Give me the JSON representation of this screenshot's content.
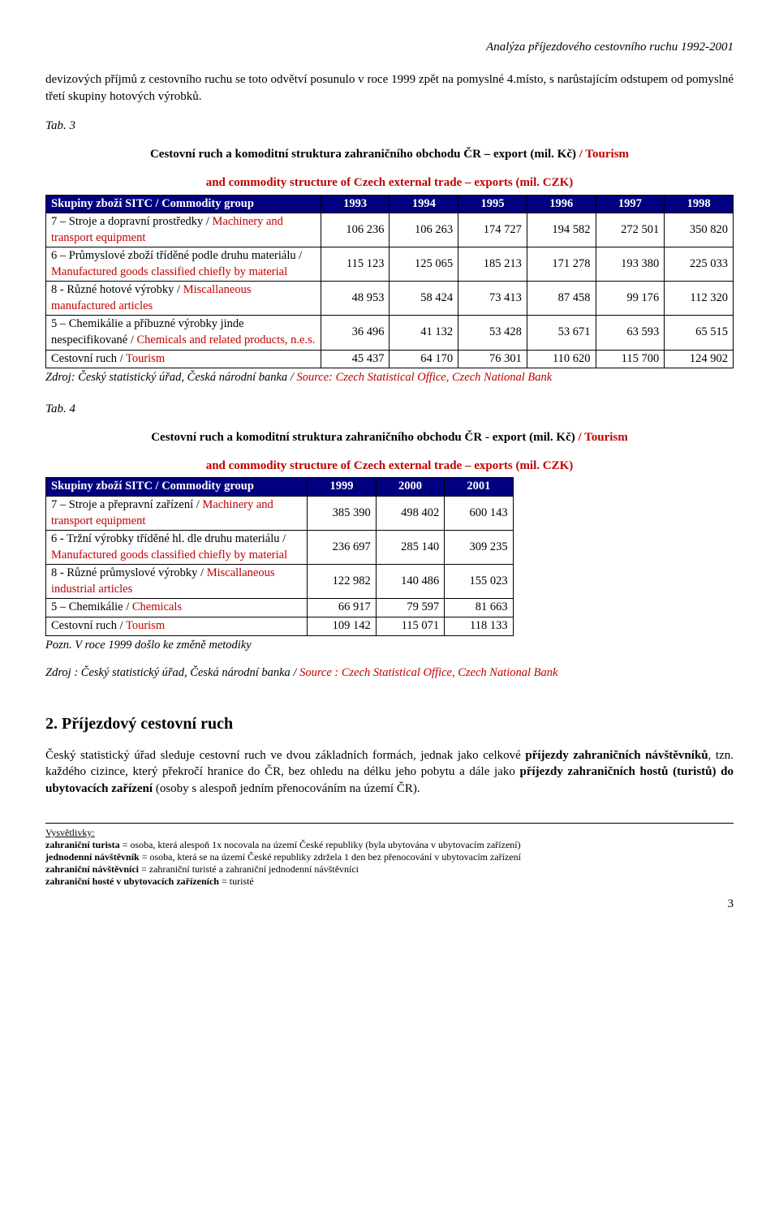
{
  "header": {
    "doc_title": "Analýza příjezdového cestovního ruchu 1992-2001"
  },
  "intro_para": "devizových příjmů z cestovního ruchu se toto odvětví posunulo v roce 1999 zpět na pomyslné 4.místo, s narůstajícím odstupem od pomyslné třetí skupiny hotových výrobků.",
  "tab3": {
    "label": "Tab. 3",
    "title_black": "Cestovní ruch a komoditní struktura zahraničního obchodu ČR – export (mil. Kč)",
    "title_red": " / Tourism",
    "subtitle": "and commodity structure of Czech external trade – exports (mil. CZK)",
    "header_col": "Skupiny zboží SITC / Commodity group",
    "years": [
      "1993",
      "1994",
      "1995",
      "1996",
      "1997",
      "1998"
    ],
    "rows": [
      {
        "label_black": "7 – Stroje a dopravní prostředky /",
        "label_red": " Machinery and transport equipment",
        "values": [
          "106 236",
          "106 263",
          "174 727",
          "194 582",
          "272 501",
          "350 820"
        ]
      },
      {
        "label_black": "6 – Průmyslové zboží tříděné podle druhu materiálu /",
        "label_red": " Manufactured goods classified chiefly by material",
        "values": [
          "115 123",
          "125 065",
          "185 213",
          "171 278",
          "193 380",
          "225 033"
        ]
      },
      {
        "label_black": "8 - Různé hotové výrobky /",
        "label_red": " Miscallaneous manufactured articles",
        "values": [
          "48 953",
          "58 424",
          "73 413",
          "87 458",
          "99 176",
          "112 320"
        ]
      },
      {
        "label_black": "5 – Chemikálie a příbuzné výrobky jinde nespecifikované /",
        "label_red": " Chemicals and related products, n.e.s.",
        "values": [
          "36 496",
          "41 132",
          "53 428",
          "53 671",
          "63 593",
          "65 515"
        ]
      },
      {
        "label_black": "Cestovní ruch /",
        "label_red": " Tourism",
        "values": [
          "45 437",
          "64 170",
          "76 301",
          "110 620",
          "115 700",
          "124 902"
        ]
      }
    ],
    "source_black": "Zdroj: Český statistický úřad, Česká národní banka /",
    "source_red": " Source: Czech Statistical Office, Czech National Bank"
  },
  "tab4": {
    "label": "Tab. 4",
    "title_black": "Cestovní ruch a komoditní struktura zahraničního obchodu ČR - export (mil. Kč)",
    "title_red": " / Tourism",
    "subtitle": "and commodity structure of Czech external trade – exports (mil. CZK)",
    "header_col": "Skupiny zboží SITC / Commodity group",
    "years": [
      "1999",
      "2000",
      "2001"
    ],
    "rows": [
      {
        "label_black": "7 – Stroje a přepravní zařízení /",
        "label_red": " Machinery and transport equipment",
        "values": [
          "385 390",
          "498 402",
          "600 143"
        ]
      },
      {
        "label_black": "6 - Tržní výrobky tříděné hl. dle druhu materiálu /",
        "label_red": " Manufactured goods classified chiefly by material",
        "values": [
          "236 697",
          "285 140",
          "309 235"
        ]
      },
      {
        "label_black": "8 - Různé průmyslové výrobky /",
        "label_red": " Miscallaneous industrial articles",
        "values": [
          "122 982",
          "140 486",
          "155 023"
        ]
      },
      {
        "label_black": "5 – Chemikálie /",
        "label_red": " Chemicals",
        "values": [
          "66 917",
          "79 597",
          "81 663"
        ]
      },
      {
        "label_black": "Cestovní ruch /",
        "label_red": " Tourism",
        "values": [
          "109 142",
          "115 071",
          "118 133"
        ]
      }
    ],
    "note": "Pozn. V roce 1999 došlo ke změně metodiky",
    "source_black": "Zdroj : Český statistický úřad, Česká národní banka /",
    "source_red": " Source : Czech Statistical Office, Czech National Bank"
  },
  "section2": {
    "heading": "2. Příjezdový cestovní ruch",
    "para_parts": [
      {
        "t": "Český statistický úřad sleduje cestovní ruch ve dvou základních formách, jednak jako celkové ",
        "b": false
      },
      {
        "t": "příjezdy zahraničních návštěvníků",
        "b": true
      },
      {
        "t": ", tzn. každého cizince, který překročí hranice do ČR, bez ohledu na délku jeho pobytu a dále jako ",
        "b": false
      },
      {
        "t": "příjezdy zahraničních hostů (turistů) do ubytovacích zařízení",
        "b": true
      },
      {
        "t": " (osoby s alespoň jedním přenocováním na území ČR).",
        "b": false
      }
    ]
  },
  "footnotes": {
    "heading": "Vysvětlivky:",
    "lines": [
      {
        "term": "zahraniční turista",
        "def": " = osoba, která alespoň 1x  nocovala na území České republiky (byla ubytována v ubytovacím zařízení)"
      },
      {
        "term": "jednodenní návštěvník ",
        "def": " = osoba, která se na území České republiky zdržela 1 den bez přenocování v ubytovacím zařízení"
      },
      {
        "term": "zahraniční návštěvníci",
        "def": " = zahraniční turisté a zahraniční jednodenní návštěvníci"
      },
      {
        "term": "zahraniční hosté v ubytovacích zařízeních",
        "def": " =  turisté"
      }
    ]
  },
  "page_number": "3"
}
